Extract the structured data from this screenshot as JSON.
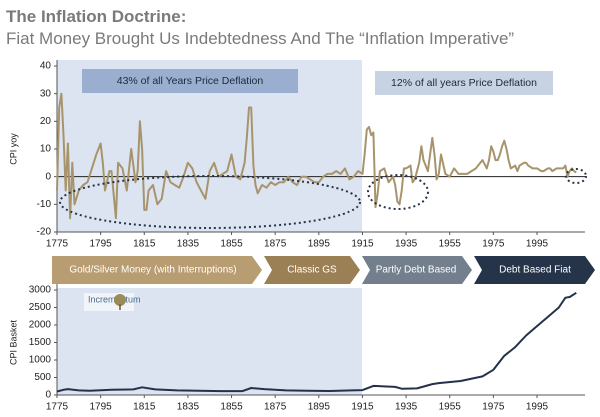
{
  "title": [
    "The Inflation Doctrine:",
    "Fiat Money Brought Us Indebtedness And The “Inflation Imperative”"
  ],
  "logo": "Incrementum",
  "eras": [
    "Gold/Silver Money (with Interruptions)",
    "Classic GS",
    "Partly Debt Based",
    "Debt Based Fiat"
  ],
  "chart_data": [
    {
      "type": "line",
      "ylabel": "CPI yoy",
      "annotations": [
        "43% of all Years Price Deflation",
        "12% of all years Price Deflation"
      ],
      "color": "#a8946c",
      "zero_line": true,
      "xlim": [
        1775,
        2017
      ],
      "ylim": [
        -20,
        40
      ],
      "xticks": [
        1775,
        1795,
        1815,
        1835,
        1855,
        1875,
        1895,
        1915,
        1935,
        1955,
        1975,
        1995
      ],
      "yticks": [
        -20,
        -10,
        0,
        10,
        20,
        30,
        40
      ],
      "x": [
        1775,
        1776,
        1777,
        1778,
        1779,
        1780,
        1781,
        1782,
        1783,
        1785,
        1787,
        1789,
        1791,
        1793,
        1795,
        1796,
        1797,
        1799,
        1800,
        1802,
        1803,
        1805,
        1807,
        1809,
        1811,
        1812,
        1813,
        1814,
        1815,
        1816,
        1817,
        1819,
        1821,
        1823,
        1825,
        1827,
        1829,
        1831,
        1833,
        1835,
        1837,
        1839,
        1841,
        1843,
        1845,
        1847,
        1849,
        1851,
        1853,
        1855,
        1857,
        1859,
        1861,
        1862,
        1863,
        1864,
        1865,
        1866,
        1867,
        1869,
        1871,
        1873,
        1875,
        1877,
        1879,
        1881,
        1883,
        1885,
        1887,
        1889,
        1891,
        1893,
        1895,
        1897,
        1899,
        1901,
        1903,
        1905,
        1907,
        1909,
        1911,
        1913,
        1915,
        1916,
        1917,
        1918,
        1919,
        1920,
        1921,
        1922,
        1923,
        1925,
        1927,
        1929,
        1930,
        1931,
        1932,
        1933,
        1934,
        1935,
        1937,
        1938,
        1939,
        1941,
        1942,
        1943,
        1945,
        1946,
        1947,
        1948,
        1949,
        1950,
        1951,
        1953,
        1955,
        1957,
        1959,
        1961,
        1963,
        1965,
        1967,
        1969,
        1970,
        1972,
        1973,
        1974,
        1975,
        1976,
        1977,
        1978,
        1979,
        1980,
        1981,
        1982,
        1983,
        1985,
        1986,
        1987,
        1989,
        1990,
        1991,
        1993,
        1995,
        1997,
        1998,
        2000,
        2001,
        2002,
        2004,
        2005,
        2007,
        2008,
        2009,
        2010,
        2011,
        2012,
        2013
      ],
      "values": [
        -5,
        25,
        30,
        15,
        -5,
        12,
        -15,
        5,
        -10,
        -5,
        -3,
        -2,
        3,
        8,
        12,
        5,
        -5,
        2,
        2,
        -15,
        5,
        3,
        -5,
        10,
        -2,
        2,
        20,
        10,
        -12,
        -12,
        -5,
        -3,
        -10,
        -8,
        2,
        -2,
        -3,
        -4,
        0,
        5,
        3,
        -2,
        -5,
        -8,
        2,
        5,
        0,
        1,
        2,
        8,
        0,
        -1,
        5,
        14,
        25,
        25,
        4,
        -3,
        -6,
        -3,
        -4,
        -2,
        -3,
        -2,
        -2,
        0,
        -2,
        -3,
        0,
        0,
        -1,
        -2,
        -2,
        0,
        1,
        1,
        2,
        1,
        3,
        -1,
        0,
        2,
        1,
        8,
        17,
        18,
        15,
        16,
        -11,
        -6,
        2,
        3,
        -2,
        0,
        -3,
        -9,
        -10,
        -5,
        3,
        3,
        4,
        -2,
        -1,
        5,
        11,
        6,
        2,
        8,
        14,
        8,
        -1,
        1,
        8,
        1,
        0,
        3,
        1,
        1,
        1,
        2,
        3,
        5,
        6,
        3,
        6,
        11,
        9,
        6,
        6,
        8,
        11,
        13,
        10,
        6,
        3,
        4,
        2,
        4,
        5,
        5,
        4,
        3,
        3,
        2,
        2,
        3,
        3,
        2,
        3,
        3,
        3,
        4,
        0,
        2,
        3,
        2,
        1.5
      ]
    },
    {
      "type": "line",
      "ylabel": "CPI Basket",
      "color": "#23324a",
      "xlim": [
        1775,
        2017
      ],
      "ylim": [
        0,
        3000
      ],
      "xticks": [
        1775,
        1795,
        1815,
        1835,
        1855,
        1875,
        1895,
        1915,
        1935,
        1955,
        1975,
        1995
      ],
      "yticks": [
        0,
        500,
        1000,
        1500,
        2000,
        2500,
        3000
      ],
      "x": [
        1775,
        1778,
        1780,
        1785,
        1790,
        1800,
        1810,
        1814,
        1820,
        1830,
        1840,
        1850,
        1860,
        1864,
        1870,
        1880,
        1890,
        1900,
        1910,
        1915,
        1920,
        1930,
        1933,
        1940,
        1947,
        1950,
        1960,
        1970,
        1975,
        1980,
        1985,
        1990,
        1995,
        2000,
        2005,
        2008,
        2010,
        2013
      ],
      "values": [
        100,
        150,
        170,
        130,
        120,
        150,
        160,
        220,
        160,
        130,
        120,
        110,
        110,
        200,
        170,
        130,
        120,
        115,
        130,
        140,
        260,
        230,
        180,
        190,
        310,
        340,
        400,
        530,
        720,
        1120,
        1370,
        1700,
        1970,
        2230,
        2500,
        2780,
        2800,
        2920
      ]
    }
  ]
}
